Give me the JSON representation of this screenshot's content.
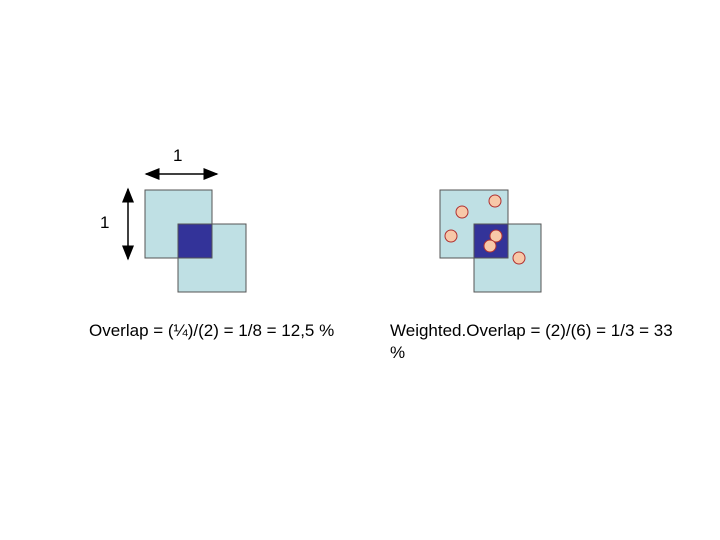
{
  "labels": {
    "width": "1",
    "height": "1"
  },
  "captions": {
    "overlap": "Overlap = (¼)/(2) = 1/8 = 12,5 %",
    "weighted_overlap": "Weighted.Overlap = (2)/(6) = 1/3 = 33 %"
  }
}
